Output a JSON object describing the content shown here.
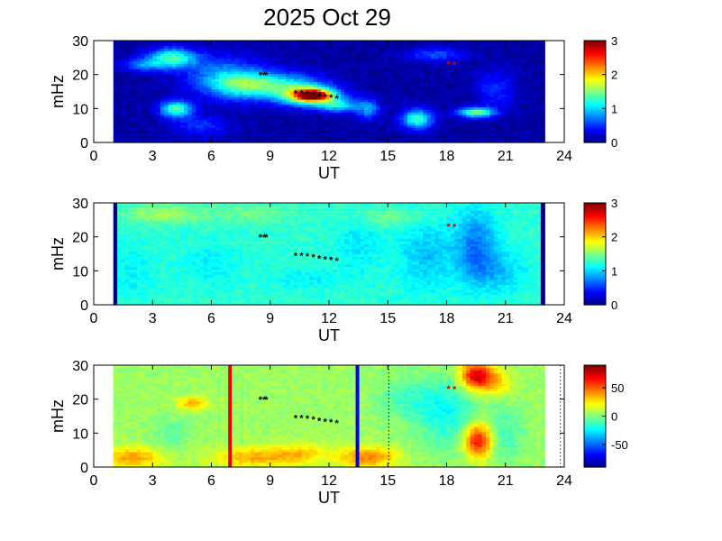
{
  "title": "2025 Oct 29",
  "chart_data": [
    {
      "type": "heatmap",
      "xlabel": "UT",
      "ylabel": "mHz",
      "xlim": [
        0,
        24
      ],
      "ylim": [
        0,
        30
      ],
      "xticks": [
        "0",
        "3",
        "6",
        "9",
        "12",
        "15",
        "18",
        "21",
        "24"
      ],
      "yticks": [
        "0",
        "10",
        "20",
        "30"
      ],
      "data_x_range": [
        1,
        23
      ],
      "colorbar": {
        "range": [
          0,
          3
        ],
        "ticks": [
          "0",
          "1",
          "2",
          "3"
        ]
      },
      "background_value": 0.1,
      "blobs": [
        {
          "x": 4,
          "y": 25,
          "rx": 1.2,
          "ry": 3,
          "v": 1.2
        },
        {
          "x": 2.5,
          "y": 23,
          "rx": 1,
          "ry": 2,
          "v": 0.6
        },
        {
          "x": 6.5,
          "y": 20,
          "rx": 2,
          "ry": 6,
          "v": 0.6
        },
        {
          "x": 4.2,
          "y": 10,
          "rx": 0.8,
          "ry": 2.5,
          "v": 1.3
        },
        {
          "x": 7.5,
          "y": 17,
          "rx": 1.6,
          "ry": 4,
          "v": 0.8
        },
        {
          "x": 9.5,
          "y": 17,
          "rx": 2,
          "ry": 4,
          "v": 0.9
        },
        {
          "x": 11,
          "y": 14,
          "rx": 1.5,
          "ry": 3,
          "v": 1.6
        },
        {
          "x": 11.2,
          "y": 14,
          "rx": 0.8,
          "ry": 1.5,
          "v": 2.0
        },
        {
          "x": 12.5,
          "y": 11,
          "rx": 1,
          "ry": 2,
          "v": 0.9
        },
        {
          "x": 14,
          "y": 10,
          "rx": 0.6,
          "ry": 3,
          "v": 0.7
        },
        {
          "x": 16.5,
          "y": 7,
          "rx": 0.8,
          "ry": 3,
          "v": 1.2
        },
        {
          "x": 19.5,
          "y": 9,
          "rx": 0.9,
          "ry": 1.5,
          "v": 1.4
        },
        {
          "x": 17.5,
          "y": 26,
          "rx": 1.5,
          "ry": 2,
          "v": 0.5
        },
        {
          "x": 5.5,
          "y": 5,
          "rx": 1.5,
          "ry": 3,
          "v": 0.4
        },
        {
          "x": 20.5,
          "y": 16,
          "rx": 1,
          "ry": 6,
          "v": 0.4
        }
      ],
      "ridge_points": [
        [
          8.5,
          19.8
        ],
        [
          8.7,
          19.8
        ],
        [
          8.8,
          19.8
        ],
        [
          10.3,
          14.3
        ],
        [
          10.6,
          14.4
        ],
        [
          10.9,
          14.2
        ],
        [
          11.2,
          14.0
        ],
        [
          11.5,
          13.6
        ],
        [
          11.8,
          13.3
        ],
        [
          12.1,
          13.1
        ],
        [
          12.4,
          12.9
        ]
      ],
      "red_points": [
        [
          18.1,
          22.9
        ],
        [
          18.4,
          22.8
        ]
      ],
      "vlines": []
    },
    {
      "type": "heatmap",
      "xlabel": "UT",
      "ylabel": "mHz",
      "xlim": [
        0,
        24
      ],
      "ylim": [
        0,
        30
      ],
      "xticks": [
        "0",
        "3",
        "6",
        "9",
        "12",
        "15",
        "18",
        "21",
        "24"
      ],
      "yticks": [
        "0",
        "10",
        "20",
        "30"
      ],
      "data_x_range": [
        1,
        23
      ],
      "colorbar": {
        "range": [
          0,
          3
        ],
        "ticks": [
          "0",
          "1",
          "2",
          "3"
        ]
      },
      "background_value": 1.25,
      "edge_strips": [
        {
          "x": 1.0,
          "w": 0.15,
          "v": 0
        },
        {
          "x": 22.85,
          "w": 0.15,
          "v": 0
        }
      ],
      "blobs": [
        {
          "x": 3.5,
          "y": 27,
          "rx": 2,
          "ry": 3,
          "v": 0.35
        },
        {
          "x": 8,
          "y": 27,
          "rx": 2,
          "ry": 3,
          "v": 0.2
        },
        {
          "x": 2,
          "y": 10,
          "rx": 1,
          "ry": 8,
          "v": -0.15
        },
        {
          "x": 6,
          "y": 12,
          "rx": 1.5,
          "ry": 6,
          "v": -0.15
        },
        {
          "x": 13.5,
          "y": 18,
          "rx": 1,
          "ry": 8,
          "v": -0.2
        },
        {
          "x": 17,
          "y": 15,
          "rx": 1.5,
          "ry": 10,
          "v": -0.3
        },
        {
          "x": 19.5,
          "y": 18,
          "rx": 1,
          "ry": 10,
          "v": -0.5
        },
        {
          "x": 20.5,
          "y": 10,
          "rx": 1.5,
          "ry": 6,
          "v": -0.3
        },
        {
          "x": 11,
          "y": 8,
          "rx": 2,
          "ry": 3,
          "v": -0.15
        },
        {
          "x": 15,
          "y": 26,
          "rx": 2,
          "ry": 3,
          "v": 0.2
        }
      ],
      "ridge_points": [
        [
          8.5,
          19.8
        ],
        [
          8.7,
          19.8
        ],
        [
          8.8,
          19.8
        ],
        [
          10.3,
          14.3
        ],
        [
          10.6,
          14.4
        ],
        [
          10.9,
          14.2
        ],
        [
          11.2,
          14.0
        ],
        [
          11.5,
          13.6
        ],
        [
          11.8,
          13.3
        ],
        [
          12.1,
          13.1
        ],
        [
          12.4,
          12.9
        ]
      ],
      "red_points": [
        [
          18.1,
          22.9
        ],
        [
          18.4,
          22.8
        ]
      ],
      "vlines": []
    },
    {
      "type": "heatmap",
      "xlabel": "UT",
      "ylabel": "mHz",
      "xlim": [
        0,
        24
      ],
      "ylim": [
        0,
        30
      ],
      "xticks": [
        "0",
        "3",
        "6",
        "9",
        "12",
        "15",
        "18",
        "21",
        "24"
      ],
      "yticks": [
        "0",
        "10",
        "20",
        "30"
      ],
      "data_x_range": [
        1,
        23
      ],
      "colorbar": {
        "range": [
          -90,
          90
        ],
        "ticks": [
          "50",
          "0",
          "-50"
        ],
        "tick_values": [
          50,
          0,
          -50
        ]
      },
      "background_value": 5,
      "blobs": [
        {
          "x": 2,
          "y": 3,
          "rx": 1.5,
          "ry": 3,
          "v": 35
        },
        {
          "x": 5,
          "y": 19,
          "rx": 0.8,
          "ry": 2,
          "v": 30
        },
        {
          "x": 8,
          "y": 3,
          "rx": 2,
          "ry": 3,
          "v": 30
        },
        {
          "x": 10.5,
          "y": 4,
          "rx": 1.5,
          "ry": 3,
          "v": 25
        },
        {
          "x": 14,
          "y": 3,
          "rx": 1.5,
          "ry": 3,
          "v": 40
        },
        {
          "x": 19.5,
          "y": 27,
          "rx": 0.8,
          "ry": 4,
          "v": 70
        },
        {
          "x": 19.6,
          "y": 8,
          "rx": 0.7,
          "ry": 5,
          "v": 65
        },
        {
          "x": 18,
          "y": 16,
          "rx": 1.5,
          "ry": 10,
          "v": -25
        },
        {
          "x": 16,
          "y": 20,
          "rx": 1.5,
          "ry": 6,
          "v": -15
        },
        {
          "x": 21,
          "y": 10,
          "rx": 1,
          "ry": 8,
          "v": -15
        },
        {
          "x": 4,
          "y": 10,
          "rx": 1,
          "ry": 5,
          "v": -10
        },
        {
          "x": 20.5,
          "y": 25,
          "rx": 0.8,
          "ry": 4,
          "v": 25
        }
      ],
      "ridge_points": [
        [
          8.5,
          19.8
        ],
        [
          8.7,
          19.8
        ],
        [
          8.8,
          19.8
        ],
        [
          10.3,
          14.3
        ],
        [
          10.6,
          14.4
        ],
        [
          10.9,
          14.2
        ],
        [
          11.2,
          14.0
        ],
        [
          11.5,
          13.6
        ],
        [
          11.8,
          13.3
        ],
        [
          12.1,
          13.1
        ],
        [
          12.4,
          12.9
        ]
      ],
      "red_points": [
        [
          18.1,
          22.9
        ],
        [
          18.4,
          22.8
        ]
      ],
      "vlines": [
        {
          "x": 6.95,
          "color": "#ee0000",
          "style": "solid"
        },
        {
          "x": 13.45,
          "color": "#0000ee",
          "style": "solid"
        },
        {
          "x": 15.05,
          "color": "#000000",
          "style": "dotted"
        },
        {
          "x": 23.8,
          "color": "#cc0000",
          "style": "dotted"
        }
      ]
    }
  ]
}
